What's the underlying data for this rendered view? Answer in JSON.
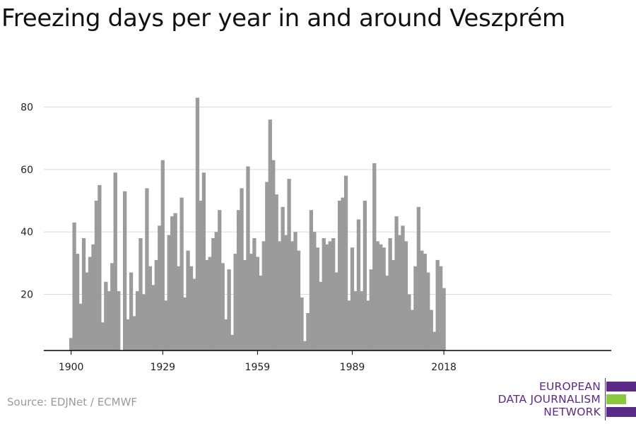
{
  "title": "Freezing days per year in and around Veszprém",
  "source": "Source: EDJNet / ECMWF",
  "logo": {
    "line1": "EUROPEAN",
    "line2": "DATA JOURNALISM",
    "line3": "NETWORK",
    "purple": "#5b2a86",
    "green": "#8dc63f"
  },
  "colors": {
    "bar": "#9b9b9b",
    "grid": "#d9d9d9",
    "axis": "#000000"
  },
  "chart_data": {
    "type": "bar",
    "title": "Freezing days per year in and around Veszprém",
    "xlabel": "",
    "ylabel": "",
    "ylim": [
      0,
      88
    ],
    "yticks": [
      20,
      40,
      60,
      80
    ],
    "xticks": [
      1900,
      1929,
      1959,
      1989,
      2018
    ],
    "grid": true,
    "x": [
      1900,
      1901,
      1902,
      1903,
      1904,
      1905,
      1906,
      1907,
      1908,
      1909,
      1910,
      1911,
      1912,
      1913,
      1914,
      1915,
      1916,
      1917,
      1918,
      1919,
      1920,
      1921,
      1922,
      1923,
      1924,
      1925,
      1926,
      1927,
      1928,
      1929,
      1930,
      1931,
      1932,
      1933,
      1934,
      1935,
      1936,
      1937,
      1938,
      1939,
      1940,
      1941,
      1942,
      1943,
      1944,
      1945,
      1946,
      1947,
      1948,
      1949,
      1950,
      1951,
      1952,
      1953,
      1954,
      1955,
      1956,
      1957,
      1958,
      1959,
      1960,
      1961,
      1962,
      1963,
      1964,
      1965,
      1966,
      1967,
      1968,
      1969,
      1970,
      1971,
      1972,
      1973,
      1974,
      1975,
      1976,
      1977,
      1978,
      1979,
      1980,
      1981,
      1982,
      1983,
      1984,
      1985,
      1986,
      1987,
      1988,
      1989,
      1990,
      1991,
      1992,
      1993,
      1994,
      1995,
      1996,
      1997,
      1998,
      1999,
      2000,
      2001,
      2002,
      2003,
      2004,
      2005,
      2006,
      2007,
      2008,
      2009,
      2010,
      2011,
      2012,
      2013,
      2014,
      2015,
      2016,
      2017,
      2018
    ],
    "values": [
      6,
      43,
      33,
      17,
      38,
      27,
      32,
      36,
      50,
      55,
      11,
      24,
      21,
      30,
      59,
      21,
      0,
      53,
      12,
      27,
      13,
      21,
      38,
      20,
      54,
      29,
      23,
      31,
      42,
      63,
      18,
      39,
      45,
      46,
      29,
      51,
      19,
      34,
      29,
      25,
      83,
      50,
      59,
      31,
      32,
      38,
      40,
      47,
      30,
      12,
      28,
      7,
      33,
      47,
      54,
      31,
      61,
      33,
      38,
      32,
      26,
      37,
      56,
      76,
      63,
      52,
      37,
      48,
      39,
      57,
      37,
      40,
      34,
      19,
      5,
      14,
      47,
      40,
      35,
      24,
      38,
      36,
      37,
      38,
      27,
      50,
      51,
      58,
      18,
      35,
      21,
      44,
      21,
      50,
      18,
      28,
      62,
      37,
      36,
      35,
      26,
      38,
      31,
      45,
      39,
      42,
      37,
      20,
      15,
      29,
      48,
      34,
      33,
      27,
      15,
      8,
      31,
      29,
      22
    ]
  }
}
